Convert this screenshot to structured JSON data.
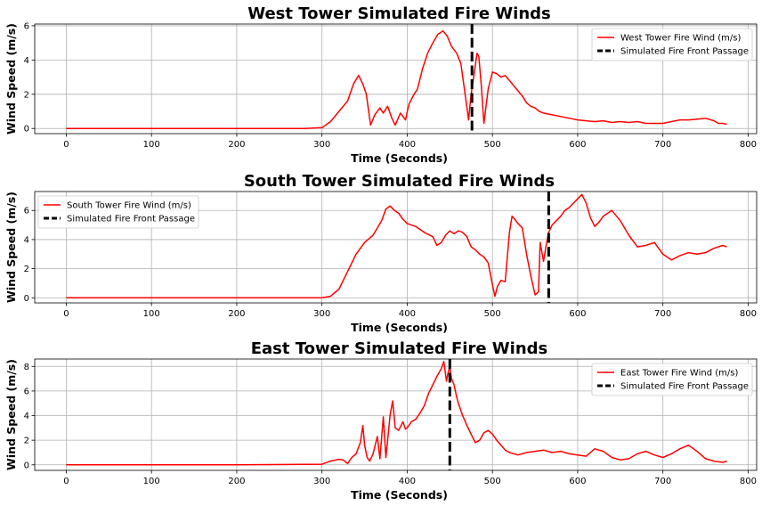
{
  "chart_data": [
    {
      "type": "line",
      "title": "West Tower Simulated Fire Winds",
      "xlabel": "Time (Seconds)",
      "ylabel": "Wind Speed (m/s)",
      "xlim": [
        -37,
        810
      ],
      "ylim": [
        -0.3,
        6.1
      ],
      "xticks": [
        0,
        100,
        200,
        300,
        400,
        500,
        600,
        700,
        800
      ],
      "yticks": [
        0,
        2,
        4,
        6
      ],
      "grid": true,
      "legend_loc": "upper right",
      "series": [
        {
          "name": "West Tower Fire Wind (m/s)",
          "color": "#ff0000",
          "style": "solid",
          "x": [
            0,
            100,
            200,
            280,
            300,
            310,
            320,
            330,
            337,
            343,
            348,
            352,
            357,
            362,
            368,
            372,
            377,
            382,
            386,
            392,
            398,
            402,
            407,
            412,
            418,
            424,
            430,
            436,
            442,
            447,
            452,
            458,
            463,
            468,
            472,
            475,
            478,
            482,
            484,
            487,
            490,
            495,
            500,
            505,
            510,
            515,
            520,
            525,
            530,
            535,
            540,
            545,
            550,
            555,
            560,
            570,
            580,
            590,
            600,
            610,
            620,
            630,
            640,
            650,
            660,
            670,
            680,
            690,
            700,
            710,
            720,
            730,
            740,
            750,
            760,
            765,
            770,
            775
          ],
          "y": [
            0.0,
            0.0,
            0.0,
            0.0,
            0.05,
            0.4,
            1.0,
            1.6,
            2.6,
            3.1,
            2.6,
            2.0,
            0.2,
            0.8,
            1.2,
            0.9,
            1.3,
            0.6,
            0.2,
            0.9,
            0.5,
            1.4,
            1.9,
            2.3,
            3.5,
            4.4,
            5.0,
            5.5,
            5.7,
            5.4,
            4.8,
            4.4,
            3.8,
            2.0,
            0.5,
            2.0,
            3.0,
            4.4,
            4.2,
            2.5,
            0.3,
            2.3,
            3.3,
            3.2,
            3.0,
            3.1,
            2.8,
            2.5,
            2.2,
            1.9,
            1.5,
            1.3,
            1.2,
            1.0,
            0.9,
            0.8,
            0.7,
            0.6,
            0.5,
            0.45,
            0.4,
            0.45,
            0.35,
            0.4,
            0.35,
            0.4,
            0.3,
            0.3,
            0.3,
            0.4,
            0.5,
            0.5,
            0.55,
            0.6,
            0.45,
            0.3,
            0.3,
            0.25
          ]
        },
        {
          "name": "Simulated Fire Front Passage",
          "color": "#000000",
          "style": "dashed",
          "vline_x": 476
        }
      ]
    },
    {
      "type": "line",
      "title": "South Tower Simulated Fire Winds",
      "xlabel": "Time (Seconds)",
      "ylabel": "Wind Speed (m/s)",
      "xlim": [
        -37,
        810
      ],
      "ylim": [
        -0.35,
        7.3
      ],
      "xticks": [
        0,
        100,
        200,
        300,
        400,
        500,
        600,
        700,
        800
      ],
      "yticks": [
        0,
        2,
        4,
        6
      ],
      "grid": true,
      "legend_loc": "upper left",
      "series": [
        {
          "name": "South Tower Fire Wind (m/s)",
          "color": "#ff0000",
          "style": "solid",
          "x": [
            0,
            100,
            200,
            300,
            310,
            320,
            330,
            340,
            350,
            360,
            370,
            375,
            380,
            385,
            390,
            395,
            400,
            410,
            420,
            430,
            435,
            440,
            445,
            450,
            455,
            460,
            465,
            470,
            475,
            480,
            485,
            490,
            495,
            500,
            503,
            506,
            510,
            515,
            520,
            523,
            526,
            530,
            535,
            540,
            545,
            550,
            554,
            556,
            560,
            563,
            566,
            570,
            575,
            580,
            585,
            590,
            595,
            600,
            605,
            610,
            615,
            620,
            625,
            630,
            640,
            650,
            660,
            670,
            680,
            690,
            700,
            710,
            720,
            730,
            740,
            750,
            760,
            770,
            775
          ],
          "y": [
            0.0,
            0.0,
            0.0,
            0.0,
            0.1,
            0.6,
            1.8,
            3.0,
            3.8,
            4.3,
            5.3,
            6.1,
            6.3,
            6.0,
            5.8,
            5.4,
            5.1,
            4.9,
            4.5,
            4.2,
            3.6,
            3.8,
            4.3,
            4.6,
            4.4,
            4.6,
            4.5,
            4.2,
            3.5,
            3.3,
            3.0,
            2.8,
            2.4,
            0.9,
            0.1,
            0.8,
            1.2,
            1.1,
            4.5,
            5.6,
            5.4,
            5.1,
            4.8,
            3.0,
            1.5,
            0.2,
            0.4,
            3.8,
            2.5,
            3.6,
            4.5,
            5.0,
            5.3,
            5.6,
            6.0,
            6.2,
            6.5,
            6.8,
            7.1,
            6.5,
            5.5,
            4.9,
            5.2,
            5.6,
            6.0,
            5.3,
            4.3,
            3.5,
            3.6,
            3.8,
            3.0,
            2.6,
            2.9,
            3.1,
            3.0,
            3.1,
            3.4,
            3.6,
            3.5
          ]
        },
        {
          "name": "Simulated Fire Front Passage",
          "color": "#000000",
          "style": "dashed",
          "vline_x": 566
        }
      ]
    },
    {
      "type": "line",
      "title": "East Tower Simulated Fire Winds",
      "xlabel": "Time (Seconds)",
      "ylabel": "Wind Speed (m/s)",
      "xlim": [
        -37,
        810
      ],
      "ylim": [
        -0.45,
        8.6
      ],
      "xticks": [
        0,
        100,
        200,
        300,
        400,
        500,
        600,
        700,
        800
      ],
      "yticks": [
        0,
        2,
        4,
        6,
        8
      ],
      "grid": true,
      "legend_loc": "upper right",
      "series": [
        {
          "name": "East Tower Fire Wind (m/s)",
          "color": "#ff0000",
          "style": "solid",
          "x": [
            0,
            100,
            200,
            300,
            310,
            320,
            325,
            330,
            335,
            340,
            345,
            348,
            350,
            353,
            356,
            360,
            365,
            368,
            372,
            375,
            380,
            383,
            386,
            390,
            395,
            398,
            400,
            405,
            410,
            415,
            420,
            425,
            430,
            435,
            440,
            443,
            446,
            448,
            450,
            452,
            455,
            458,
            460,
            465,
            470,
            475,
            480,
            485,
            490,
            495,
            500,
            505,
            510,
            515,
            520,
            530,
            540,
            550,
            560,
            570,
            580,
            590,
            600,
            610,
            620,
            630,
            640,
            650,
            660,
            670,
            680,
            690,
            700,
            710,
            720,
            730,
            740,
            750,
            760,
            770,
            775
          ],
          "y": [
            0.0,
            0.0,
            0.0,
            0.05,
            0.3,
            0.45,
            0.4,
            0.1,
            0.6,
            0.9,
            1.8,
            3.2,
            1.6,
            0.6,
            0.3,
            0.9,
            2.3,
            0.5,
            3.9,
            0.6,
            4.1,
            5.2,
            3.0,
            2.8,
            3.5,
            2.9,
            3.0,
            3.5,
            3.7,
            4.2,
            4.8,
            5.8,
            6.5,
            7.2,
            7.8,
            8.4,
            6.8,
            7.5,
            8.0,
            7.0,
            6.5,
            5.5,
            5.0,
            4.0,
            3.2,
            2.5,
            1.8,
            2.0,
            2.6,
            2.8,
            2.5,
            2.0,
            1.6,
            1.2,
            1.0,
            0.8,
            1.0,
            1.1,
            1.2,
            1.0,
            1.1,
            0.9,
            0.8,
            0.7,
            1.3,
            1.1,
            0.6,
            0.4,
            0.5,
            0.9,
            1.1,
            0.8,
            0.6,
            0.9,
            1.3,
            1.6,
            1.1,
            0.5,
            0.3,
            0.2,
            0.3
          ]
        },
        {
          "name": "Simulated Fire Front Passage",
          "color": "#000000",
          "style": "dashed",
          "vline_x": 450
        }
      ]
    }
  ]
}
